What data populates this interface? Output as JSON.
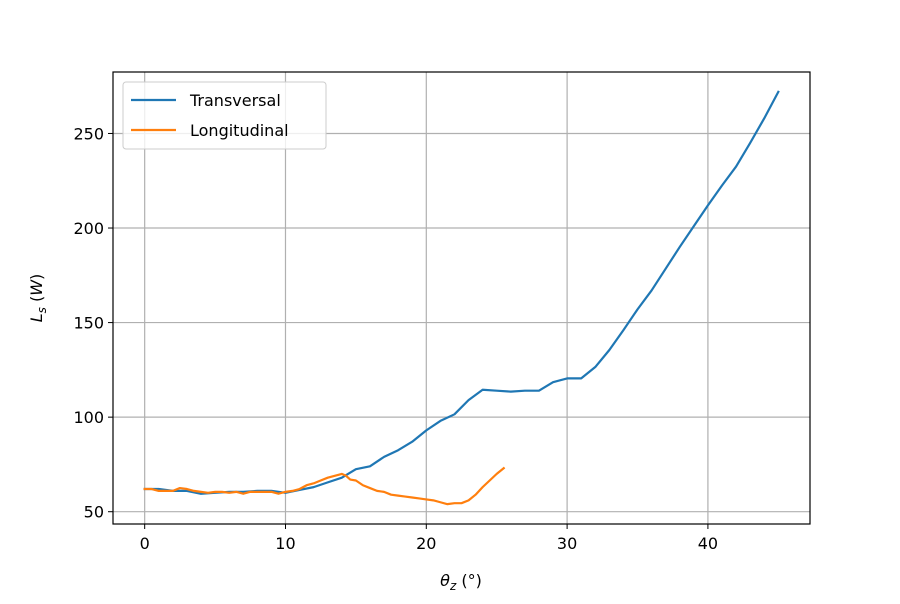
{
  "chart_data": {
    "type": "line",
    "xlabel": "θz (°)",
    "ylabel": "Ls (W)",
    "xlim": [
      -2.25,
      47.25
    ],
    "ylim": [
      43.5,
      282.5
    ],
    "xticks": [
      0,
      10,
      20,
      30,
      40
    ],
    "yticks": [
      50,
      100,
      150,
      200,
      250
    ],
    "grid": true,
    "legend_position": "top-left",
    "series": [
      {
        "name": "Transversal",
        "color": "#1f77b4",
        "x": [
          0,
          1,
          2,
          3,
          4,
          5,
          6,
          7,
          8,
          9,
          10,
          11,
          12,
          13,
          14,
          15,
          16,
          17,
          18,
          19,
          20,
          21,
          22,
          23,
          24,
          25,
          26,
          27,
          28,
          29,
          30,
          31,
          32,
          33,
          34,
          35,
          36,
          37,
          38,
          39,
          40,
          41,
          42,
          43,
          44,
          45
        ],
        "y": [
          62,
          62,
          61,
          61,
          59.5,
          60,
          60.5,
          60.5,
          61,
          61,
          60,
          61.5,
          63,
          65.5,
          68,
          72.5,
          74,
          79,
          82.5,
          87,
          93,
          98,
          101.5,
          109,
          114.5,
          114,
          113.5,
          114,
          114,
          118.5,
          120.5,
          120.5,
          126.5,
          135.5,
          146,
          157,
          167,
          178.5,
          190,
          201,
          212,
          222.5,
          232.5,
          245,
          258,
          272
        ]
      },
      {
        "name": "Longitudinal",
        "color": "#ff7f0e",
        "x": [
          0,
          0.5,
          1,
          1.5,
          2,
          2.5,
          3,
          3.5,
          4,
          4.5,
          5,
          5.5,
          6,
          6.5,
          7,
          7.5,
          8,
          8.5,
          9,
          9.5,
          10,
          10.5,
          11,
          11.5,
          12,
          12.5,
          13,
          13.5,
          14,
          14.3,
          14.6,
          15,
          15.5,
          16,
          16.5,
          17,
          17.5,
          18,
          18.5,
          19,
          19.5,
          20,
          20.5,
          21,
          21.5,
          22,
          22.5,
          23,
          23.5,
          24,
          24.5,
          25,
          25.5
        ],
        "y": [
          62,
          62,
          61,
          61,
          61,
          62.5,
          62,
          61,
          60.5,
          60,
          60.5,
          60.5,
          60,
          60.5,
          59.5,
          60.5,
          60.5,
          60.5,
          60.5,
          59.5,
          60.5,
          61,
          62,
          64,
          65,
          66.5,
          68,
          69,
          70,
          69,
          67,
          66.5,
          64,
          62.5,
          61,
          60.5,
          59,
          58.5,
          58,
          57.5,
          57,
          56.5,
          56,
          55,
          54,
          54.5,
          54.5,
          56,
          59,
          63,
          66.5,
          70,
          73
        ]
      }
    ]
  }
}
